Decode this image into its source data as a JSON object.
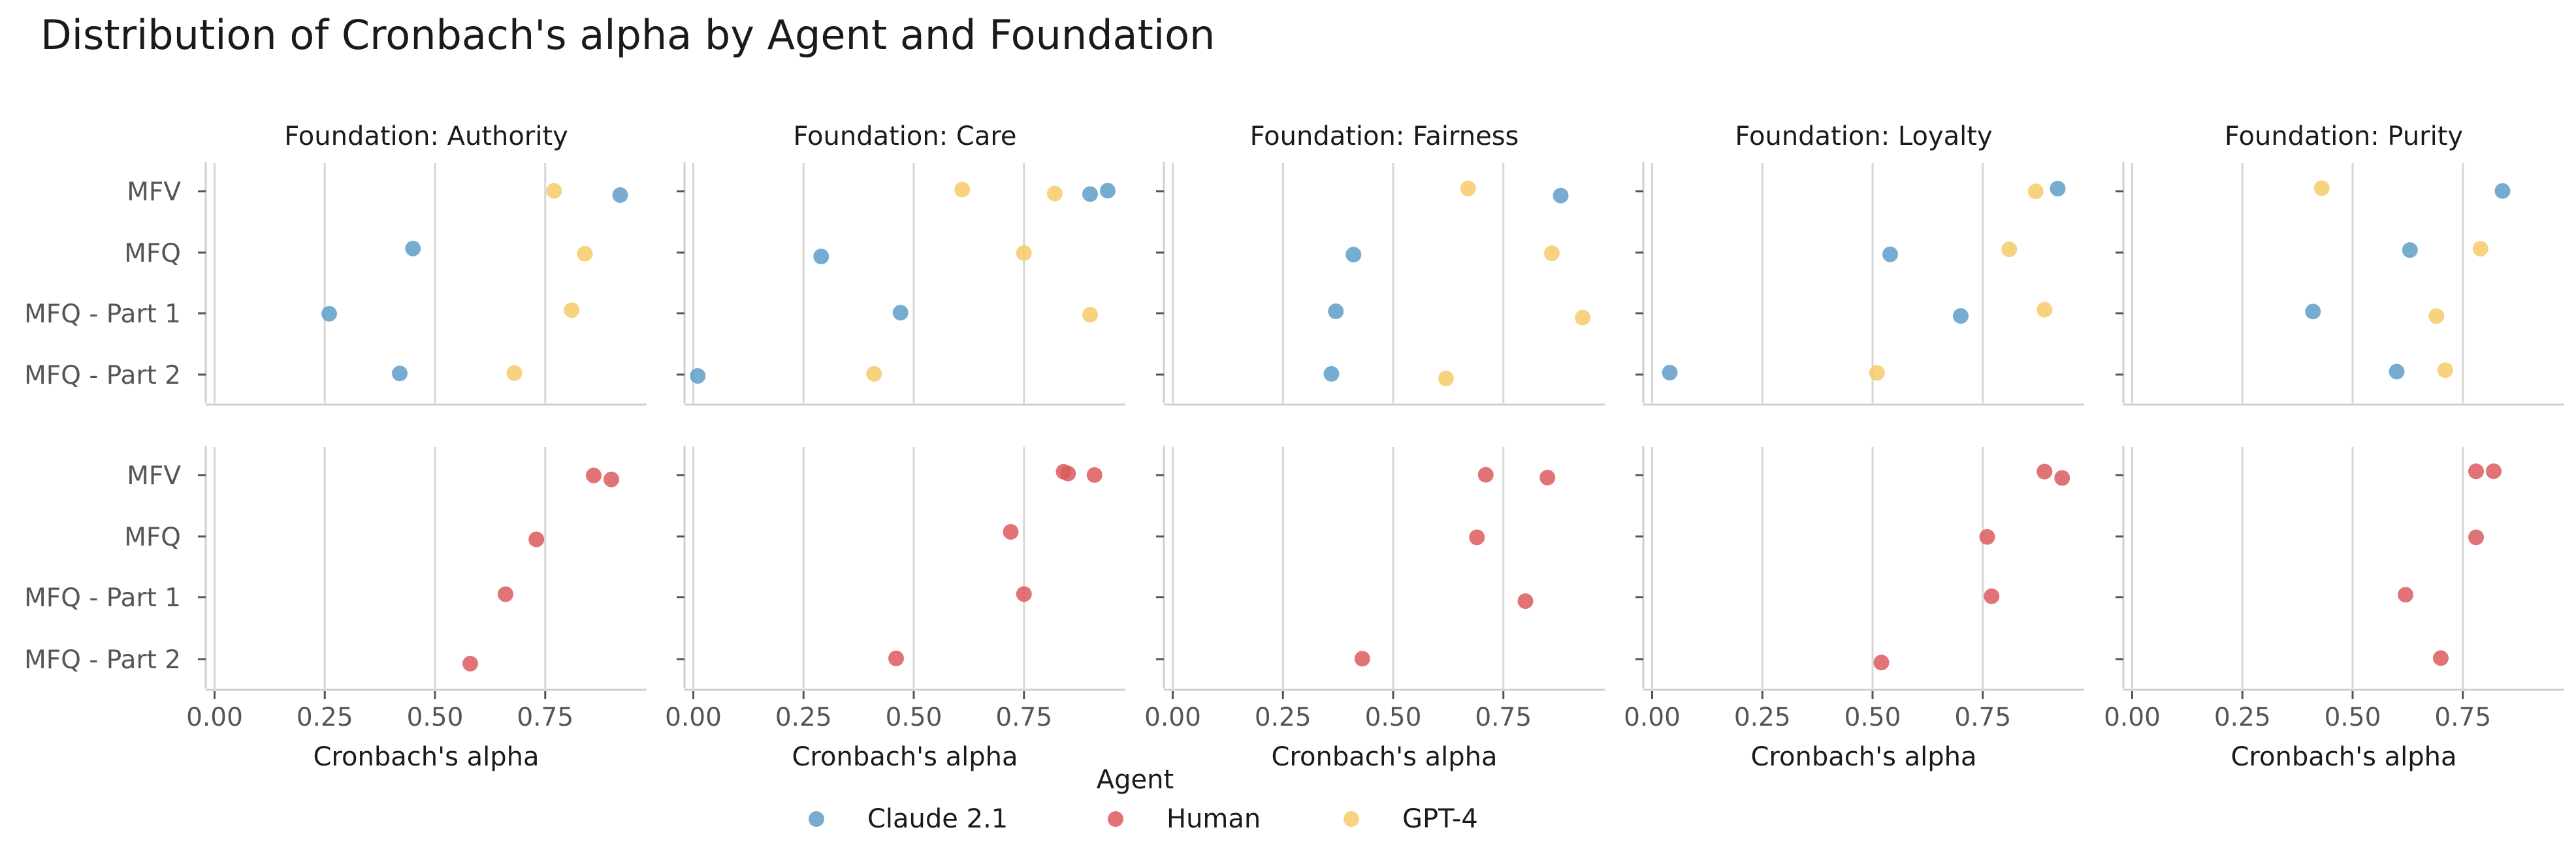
{
  "chart_data": {
    "type": "scatter",
    "title": "Distribution of Cronbach's alpha by Agent and Foundation",
    "xlabel": "Cronbach's alpha",
    "xlim": [
      -0.02,
      0.98
    ],
    "xticks": [
      0.0,
      0.25,
      0.5,
      0.75
    ],
    "xtick_labels": [
      "0.00",
      "0.25",
      "0.50",
      "0.75"
    ],
    "categories": [
      "MFV",
      "MFQ",
      "MFQ - Part 1",
      "MFQ - Part 2"
    ],
    "grid": "vertical",
    "legend": {
      "title": "Agent",
      "placement": "bottom-center",
      "entries": [
        "Claude 2.1",
        "Human",
        "GPT-4"
      ]
    },
    "colors": {
      "Claude 2.1": "#5f9ec9",
      "Human": "#dc5a5e",
      "GPT-4": "#f6cb68"
    },
    "facets": [
      {
        "title": "Foundation: Authority",
        "top": {
          "Claude 2.1": {
            "MFV": 0.92,
            "MFQ": 0.45,
            "MFQ - Part 1": 0.26,
            "MFQ - Part 2": 0.42
          },
          "GPT-4": {
            "MFV": 0.77,
            "MFQ": 0.84,
            "MFQ - Part 1": 0.81,
            "MFQ - Part 2": 0.68
          }
        },
        "bottom": {
          "Human": {
            "MFV": [
              0.86,
              0.9
            ],
            "MFQ": [
              0.73
            ],
            "MFQ - Part 1": [
              0.66
            ],
            "MFQ - Part 2": [
              0.58
            ]
          }
        }
      },
      {
        "title": "Foundation: Care",
        "top": {
          "Claude 2.1": {
            "MFV": [
              0.9,
              0.94
            ],
            "MFQ": 0.29,
            "MFQ - Part 1": 0.47,
            "MFQ - Part 2": 0.01
          },
          "GPT-4": {
            "MFV": [
              0.61,
              0.82
            ],
            "MFQ": 0.75,
            "MFQ - Part 1": 0.9,
            "MFQ - Part 2": 0.41
          }
        },
        "bottom": {
          "Human": {
            "MFV": [
              0.84,
              0.85,
              0.91
            ],
            "MFQ": [
              0.72
            ],
            "MFQ - Part 1": [
              0.75
            ],
            "MFQ - Part 2": [
              0.46
            ]
          }
        }
      },
      {
        "title": "Foundation: Fairness",
        "top": {
          "Claude 2.1": {
            "MFV": 0.88,
            "MFQ": 0.41,
            "MFQ - Part 1": 0.37,
            "MFQ - Part 2": 0.36
          },
          "GPT-4": {
            "MFV": 0.67,
            "MFQ": 0.86,
            "MFQ - Part 1": 0.93,
            "MFQ - Part 2": 0.62
          }
        },
        "bottom": {
          "Human": {
            "MFV": [
              0.71,
              0.85
            ],
            "MFQ": [
              0.69
            ],
            "MFQ - Part 1": [
              0.8
            ],
            "MFQ - Part 2": [
              0.43
            ]
          }
        }
      },
      {
        "title": "Foundation: Loyalty",
        "top": {
          "Claude 2.1": {
            "MFV": 0.92,
            "MFQ": 0.54,
            "MFQ - Part 1": 0.7,
            "MFQ - Part 2": 0.04
          },
          "GPT-4": {
            "MFV": 0.87,
            "MFQ": 0.81,
            "MFQ - Part 1": 0.89,
            "MFQ - Part 2": 0.51
          }
        },
        "bottom": {
          "Human": {
            "MFV": [
              0.89,
              0.93
            ],
            "MFQ": [
              0.76
            ],
            "MFQ - Part 1": [
              0.77
            ],
            "MFQ - Part 2": [
              0.52
            ]
          }
        }
      },
      {
        "title": "Foundation: Purity",
        "top": {
          "Claude 2.1": {
            "MFV": 0.84,
            "MFQ": 0.63,
            "MFQ - Part 1": 0.41,
            "MFQ - Part 2": 0.6
          },
          "GPT-4": {
            "MFV": 0.43,
            "MFQ": 0.79,
            "MFQ - Part 1": 0.69,
            "MFQ - Part 2": 0.71
          }
        },
        "bottom": {
          "Human": {
            "MFV": [
              0.78,
              0.82
            ],
            "MFQ": [
              0.78
            ],
            "MFQ - Part 1": [
              0.62
            ],
            "MFQ - Part 2": [
              0.7
            ]
          }
        }
      }
    ]
  }
}
